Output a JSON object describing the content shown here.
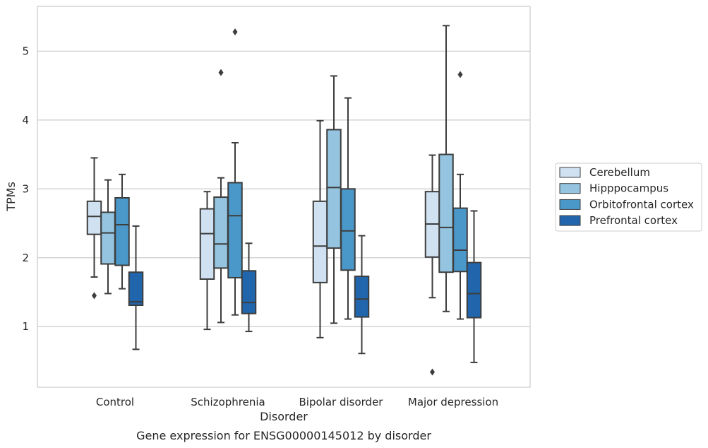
{
  "chart_data": {
    "type": "boxplot",
    "xlabel": "Disorder",
    "ylabel": "TPMs",
    "caption": "Gene expression for ENSG00000145012 by disorder",
    "ylim": [
      0.12,
      5.65
    ],
    "yticks": [
      1,
      2,
      3,
      4,
      5
    ],
    "grid": "horizontal",
    "legend_position": "right",
    "categories": [
      "Control",
      "Schizophrenia",
      "Bipolar disorder",
      "Major depression"
    ],
    "series": [
      {
        "name": "Cerebellum",
        "color": "#d0e1f2",
        "boxes": [
          {
            "whisker_low": 1.72,
            "q1": 2.34,
            "median": 2.6,
            "q3": 2.82,
            "whisker_high": 3.45,
            "outliers": [
              1.45
            ]
          },
          {
            "whisker_low": 0.96,
            "q1": 1.69,
            "median": 2.35,
            "q3": 2.71,
            "whisker_high": 2.96,
            "outliers": []
          },
          {
            "whisker_low": 0.84,
            "q1": 1.64,
            "median": 2.17,
            "q3": 2.82,
            "whisker_high": 3.99,
            "outliers": []
          },
          {
            "whisker_low": 1.42,
            "q1": 2.01,
            "median": 2.49,
            "q3": 2.96,
            "whisker_high": 3.49,
            "outliers": [
              0.34
            ]
          }
        ]
      },
      {
        "name": "Hipppocampus",
        "color": "#94c4df",
        "boxes": [
          {
            "whisker_low": 1.48,
            "q1": 1.91,
            "median": 2.36,
            "q3": 2.66,
            "whisker_high": 3.13,
            "outliers": []
          },
          {
            "whisker_low": 1.06,
            "q1": 1.85,
            "median": 2.2,
            "q3": 2.88,
            "whisker_high": 3.16,
            "outliers": [
              4.69
            ]
          },
          {
            "whisker_low": 1.05,
            "q1": 2.14,
            "median": 3.02,
            "q3": 3.86,
            "whisker_high": 4.64,
            "outliers": []
          },
          {
            "whisker_low": 1.22,
            "q1": 1.79,
            "median": 2.44,
            "q3": 3.5,
            "whisker_high": 5.37,
            "outliers": []
          }
        ]
      },
      {
        "name": "Orbitofrontal cortex",
        "color": "#4a98c9",
        "boxes": [
          {
            "whisker_low": 1.55,
            "q1": 1.89,
            "median": 2.48,
            "q3": 2.87,
            "whisker_high": 3.21,
            "outliers": []
          },
          {
            "whisker_low": 1.17,
            "q1": 1.71,
            "median": 2.61,
            "q3": 3.09,
            "whisker_high": 3.67,
            "outliers": [
              5.28
            ]
          },
          {
            "whisker_low": 1.11,
            "q1": 1.82,
            "median": 2.39,
            "q3": 3.0,
            "whisker_high": 4.32,
            "outliers": []
          },
          {
            "whisker_low": 1.11,
            "q1": 1.8,
            "median": 2.11,
            "q3": 2.72,
            "whisker_high": 3.21,
            "outliers": [
              4.66
            ]
          }
        ]
      },
      {
        "name": "Prefrontal cortex",
        "color": "#2166ac",
        "boxes": [
          {
            "whisker_low": 0.67,
            "q1": 1.31,
            "median": 1.36,
            "q3": 1.79,
            "whisker_high": 2.46,
            "outliers": []
          },
          {
            "whisker_low": 0.93,
            "q1": 1.19,
            "median": 1.35,
            "q3": 1.81,
            "whisker_high": 2.21,
            "outliers": []
          },
          {
            "whisker_low": 0.61,
            "q1": 1.14,
            "median": 1.4,
            "q3": 1.73,
            "whisker_high": 2.32,
            "outliers": []
          },
          {
            "whisker_low": 0.48,
            "q1": 1.13,
            "median": 1.48,
            "q3": 1.93,
            "whisker_high": 2.68,
            "outliers": []
          }
        ]
      }
    ]
  }
}
